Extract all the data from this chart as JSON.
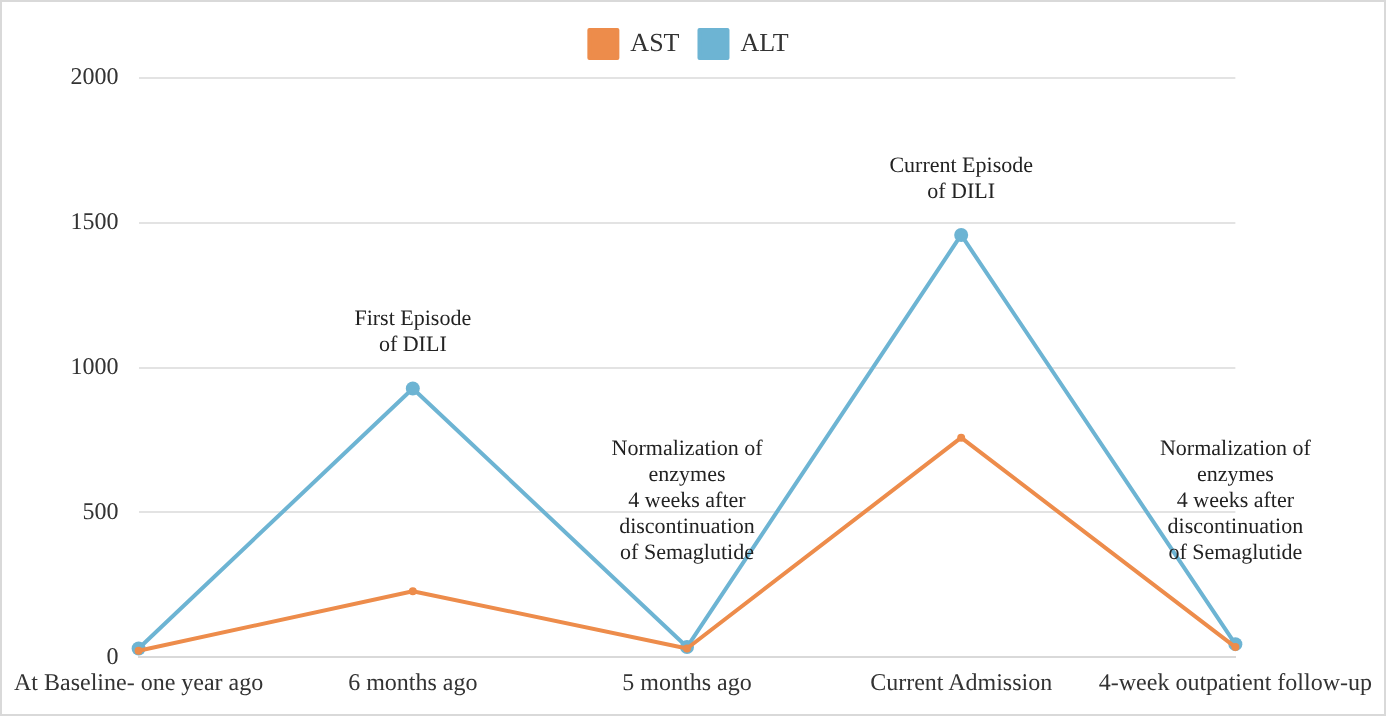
{
  "chart_data": {
    "type": "line",
    "categories": [
      "At Baseline- one year ago",
      "6 months ago",
      "5 months ago",
      "Current Admission",
      "4-week outpatient follow-up"
    ],
    "series": [
      {
        "name": "AST",
        "color": "#ed8c4b",
        "values": [
          22,
          228,
          30,
          758,
          35
        ]
      },
      {
        "name": "ALT",
        "color": "#6db4d3",
        "values": [
          30,
          928,
          35,
          1458,
          45
        ]
      }
    ],
    "ylim": [
      0,
      2000
    ],
    "yticks": [
      0,
      500,
      1000,
      1500,
      2000
    ],
    "grid": "y",
    "legend": "top",
    "marker": "circle",
    "line_style": "solid",
    "annotations": [
      {
        "text": "First Episode\nof DILI",
        "x": "6 months ago",
        "y": 928
      },
      "Normalization of\nenzymes\n4 weeks after\ndiscontinuation\nof Semaglutide",
      {
        "text": "Current Episode\nof DILI",
        "x": "Current Admission",
        "y": 1458
      },
      "Normalization of\nenzymes\n4 weeks after\ndiscontinuation\nof Semaglutide"
    ]
  }
}
